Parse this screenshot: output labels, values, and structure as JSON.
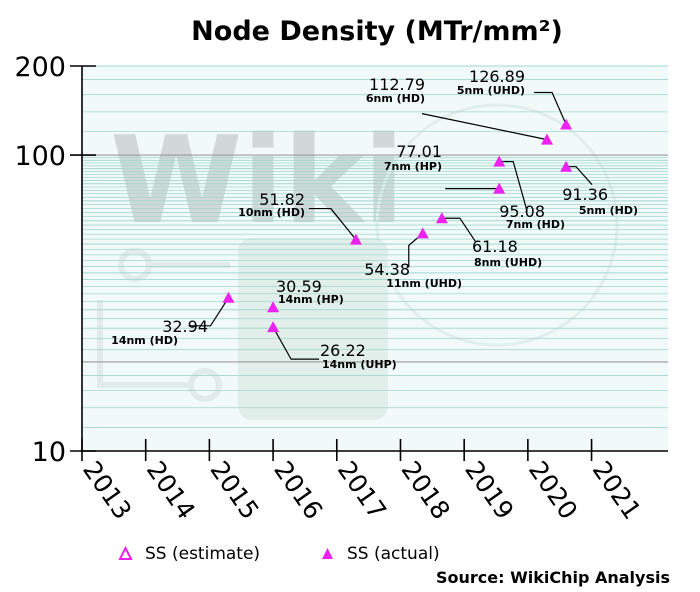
{
  "chart_data": {
    "type": "scatter",
    "title": "Node Density (MTr/mm²)",
    "xlabel": "",
    "ylabel": "",
    "y_scale": "log",
    "xlim": [
      2013,
      2022.2
    ],
    "ylim": [
      10,
      200
    ],
    "x_ticks": [
      "2013",
      "2014",
      "2015",
      "2016",
      "2017",
      "2018",
      "2019",
      "2020",
      "2021"
    ],
    "y_ticks": [
      "10",
      "100",
      "200"
    ],
    "grid": true,
    "legend_position": "bottom",
    "colors": {
      "marker": "#ee22ee",
      "grid_minor": "#9fd8d0",
      "grid_major": "#999999",
      "plot_bg": "#f2faf9"
    },
    "legend": [
      {
        "name": "SS (estimate)",
        "marker": "hollow-triangle"
      },
      {
        "name": "SS (actual)",
        "marker": "filled-triangle"
      }
    ],
    "series": [
      {
        "name": "SS (actual)",
        "points": [
          {
            "x": 2015.3,
            "y": 32.94,
            "value_label": "32.94",
            "node_label": "14nm (HD)"
          },
          {
            "x": 2016.0,
            "y": 30.59,
            "value_label": "30.59",
            "node_label": "14nm (HP)"
          },
          {
            "x": 2016.0,
            "y": 26.22,
            "value_label": "26.22",
            "node_label": "14nm (UHP)"
          },
          {
            "x": 2017.3,
            "y": 51.82,
            "value_label": "51.82",
            "node_label": "10nm (HD)"
          },
          {
            "x": 2018.35,
            "y": 54.38,
            "value_label": "54.38",
            "node_label": "11nm (UHD)"
          },
          {
            "x": 2018.65,
            "y": 61.18,
            "value_label": "61.18",
            "node_label": "8nm (UHD)"
          },
          {
            "x": 2019.55,
            "y": 77.01,
            "value_label": "77.01",
            "node_label": "7nm (HP)"
          },
          {
            "x": 2019.55,
            "y": 95.08,
            "value_label": "95.08",
            "node_label": "7nm (HD)"
          },
          {
            "x": 2020.6,
            "y": 91.36,
            "value_label": "91.36",
            "node_label": "5nm (HD)"
          },
          {
            "x": 2020.3,
            "y": 112.79,
            "value_label": "112.79",
            "node_label": "6nm (HD)"
          },
          {
            "x": 2020.6,
            "y": 126.89,
            "value_label": "126.89",
            "node_label": "5nm (UHD)"
          }
        ]
      }
    ]
  },
  "source": "Source: WikiChip Analysis"
}
